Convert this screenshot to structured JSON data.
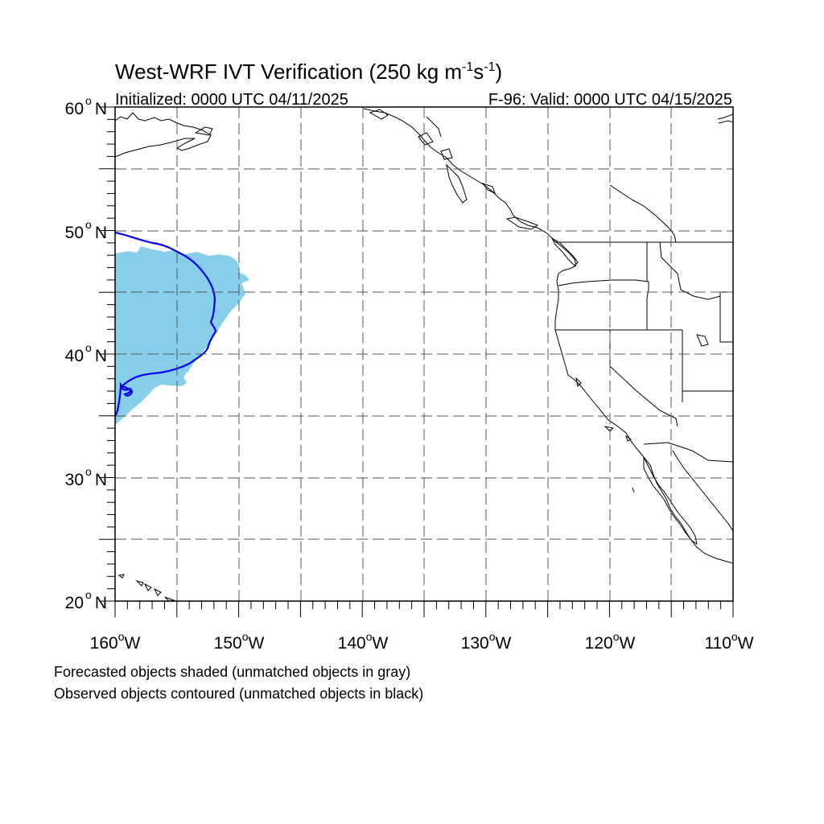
{
  "title": {
    "main": "West-WRF IVT Verification (250 kg m",
    "sup1": "-1",
    "mid": "s",
    "sup2": "-1",
    "end": ")"
  },
  "initialized": "Initialized: 0000 UTC 04/11/2025",
  "valid": "F-96: Valid: 0000 UTC 04/15/2025",
  "lat_labels": [
    "60",
    "50",
    "40",
    "30",
    "20"
  ],
  "lon_labels": [
    "160",
    "150",
    "140",
    "130",
    "120",
    "110"
  ],
  "lat_suffix": "N",
  "lon_suffix": "W",
  "degree_symbol": "o",
  "map_extent": {
    "lon_min": -160,
    "lon_max": -110,
    "lat_min": 20,
    "lat_max": 60,
    "grid_spacing_deg": 5
  },
  "objects": {
    "forecast_fill_color": "#87CEEB",
    "observed_contour_color": "#0000EE"
  },
  "notes": [
    "Forecasted objects shaded (unmatched objects in gray)",
    "Observed objects contoured (unmatched objects in black)"
  ]
}
